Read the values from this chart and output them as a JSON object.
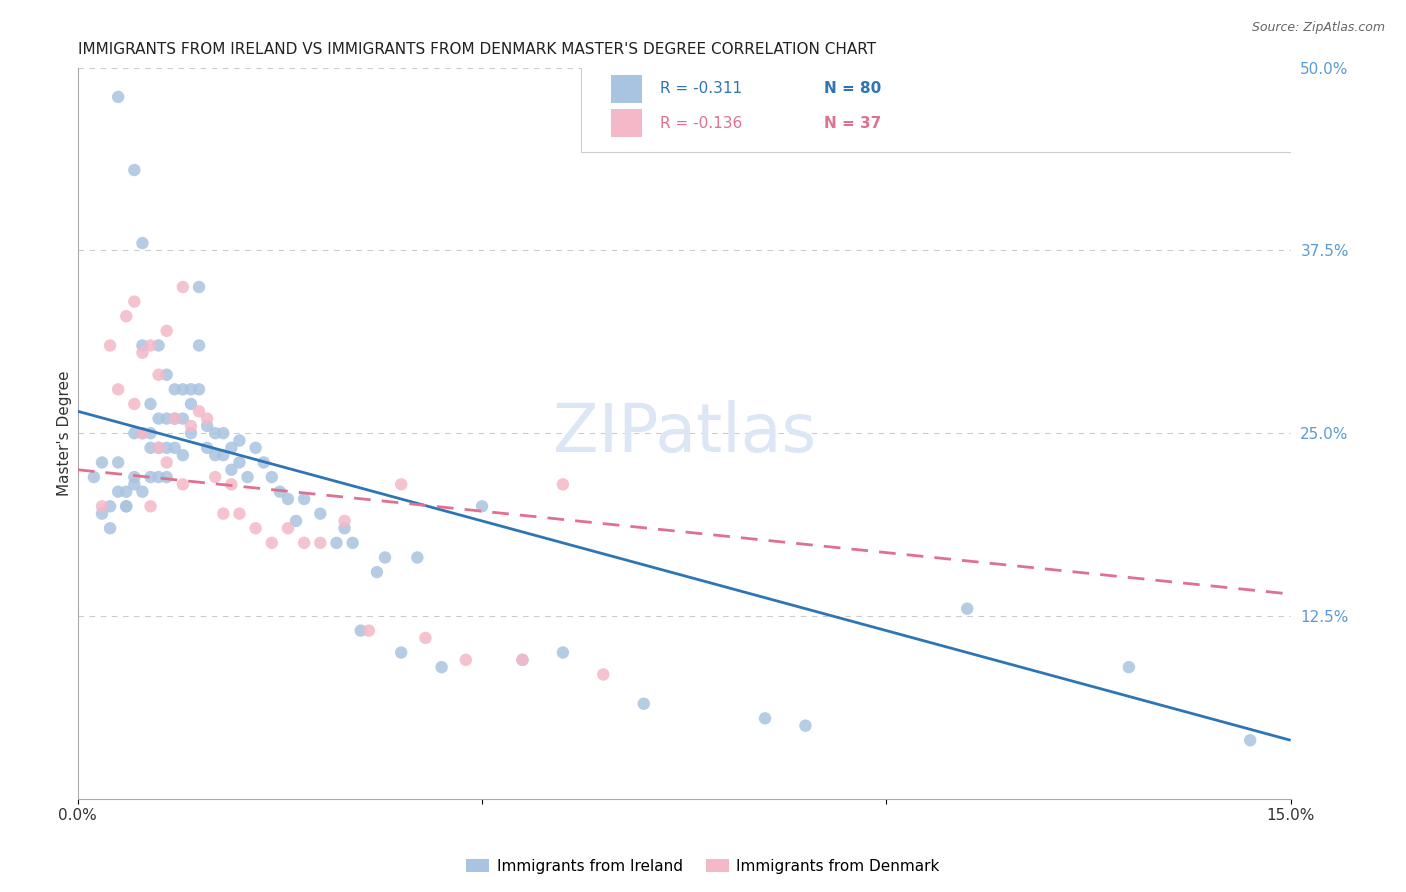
{
  "title": "IMMIGRANTS FROM IRELAND VS IMMIGRANTS FROM DENMARK MASTER'S DEGREE CORRELATION CHART",
  "source": "Source: ZipAtlas.com",
  "ylabel_label": "Master's Degree",
  "xlim": [
    0.0,
    0.15
  ],
  "ylim": [
    0.0,
    0.5
  ],
  "xtick_positions": [
    0.0,
    0.05,
    0.1,
    0.15
  ],
  "xtick_labels": [
    "0.0%",
    "",
    "",
    "15.0%"
  ],
  "ytick_positions": [
    0.125,
    0.25,
    0.375,
    0.5
  ],
  "ytick_labels": [
    "12.5%",
    "25.0%",
    "37.5%",
    "50.0%"
  ],
  "ireland_color": "#a8c4e0",
  "denmark_color": "#f4b8c8",
  "ireland_line_color": "#2e75b6",
  "denmark_line_color": "#e07090",
  "legend_ireland_R": "-0.311",
  "legend_ireland_N": "80",
  "legend_denmark_R": "-0.136",
  "legend_denmark_N": "37",
  "watermark": "ZIPatlas",
  "ireland_scatter_x": [
    0.002,
    0.003,
    0.003,
    0.004,
    0.004,
    0.005,
    0.005,
    0.005,
    0.006,
    0.006,
    0.006,
    0.007,
    0.007,
    0.007,
    0.007,
    0.008,
    0.008,
    0.008,
    0.008,
    0.009,
    0.009,
    0.009,
    0.009,
    0.01,
    0.01,
    0.01,
    0.01,
    0.011,
    0.011,
    0.011,
    0.011,
    0.012,
    0.012,
    0.012,
    0.013,
    0.013,
    0.013,
    0.014,
    0.014,
    0.014,
    0.015,
    0.015,
    0.015,
    0.016,
    0.016,
    0.017,
    0.017,
    0.018,
    0.018,
    0.019,
    0.019,
    0.02,
    0.02,
    0.021,
    0.022,
    0.023,
    0.024,
    0.025,
    0.026,
    0.027,
    0.028,
    0.03,
    0.032,
    0.033,
    0.034,
    0.035,
    0.037,
    0.038,
    0.04,
    0.042,
    0.045,
    0.05,
    0.055,
    0.06,
    0.07,
    0.085,
    0.09,
    0.11,
    0.13,
    0.145
  ],
  "ireland_scatter_y": [
    0.22,
    0.195,
    0.23,
    0.2,
    0.185,
    0.21,
    0.23,
    0.48,
    0.2,
    0.21,
    0.2,
    0.43,
    0.25,
    0.22,
    0.215,
    0.38,
    0.31,
    0.25,
    0.21,
    0.27,
    0.25,
    0.24,
    0.22,
    0.31,
    0.26,
    0.24,
    0.22,
    0.29,
    0.26,
    0.24,
    0.22,
    0.28,
    0.26,
    0.24,
    0.28,
    0.26,
    0.235,
    0.28,
    0.27,
    0.25,
    0.35,
    0.31,
    0.28,
    0.255,
    0.24,
    0.25,
    0.235,
    0.25,
    0.235,
    0.24,
    0.225,
    0.245,
    0.23,
    0.22,
    0.24,
    0.23,
    0.22,
    0.21,
    0.205,
    0.19,
    0.205,
    0.195,
    0.175,
    0.185,
    0.175,
    0.115,
    0.155,
    0.165,
    0.1,
    0.165,
    0.09,
    0.2,
    0.095,
    0.1,
    0.065,
    0.055,
    0.05,
    0.13,
    0.09,
    0.04
  ],
  "denmark_scatter_x": [
    0.003,
    0.004,
    0.005,
    0.006,
    0.007,
    0.007,
    0.008,
    0.008,
    0.009,
    0.009,
    0.01,
    0.01,
    0.011,
    0.011,
    0.012,
    0.013,
    0.013,
    0.014,
    0.015,
    0.016,
    0.017,
    0.018,
    0.019,
    0.02,
    0.022,
    0.024,
    0.026,
    0.028,
    0.03,
    0.033,
    0.036,
    0.04,
    0.043,
    0.048,
    0.055,
    0.06,
    0.065
  ],
  "denmark_scatter_y": [
    0.2,
    0.31,
    0.28,
    0.33,
    0.27,
    0.34,
    0.305,
    0.25,
    0.31,
    0.2,
    0.29,
    0.24,
    0.32,
    0.23,
    0.26,
    0.35,
    0.215,
    0.255,
    0.265,
    0.26,
    0.22,
    0.195,
    0.215,
    0.195,
    0.185,
    0.175,
    0.185,
    0.175,
    0.175,
    0.19,
    0.115,
    0.215,
    0.11,
    0.095,
    0.095,
    0.215,
    0.085
  ],
  "ireland_marker_size": 80,
  "denmark_marker_size": 80,
  "grid_color": "#cccccc",
  "background_color": "#ffffff",
  "title_fontsize": 11,
  "axis_label_fontsize": 11,
  "tick_fontsize": 11,
  "legend_fontsize": 11,
  "watermark_fontsize": 48,
  "watermark_color": "#dce6f5",
  "right_tick_color": "#5b9bd5",
  "ireland_line_x": [
    0.0,
    0.15
  ],
  "ireland_line_y": [
    0.265,
    0.04
  ],
  "denmark_line_x": [
    0.0,
    0.15
  ],
  "denmark_line_y": [
    0.225,
    0.14
  ]
}
